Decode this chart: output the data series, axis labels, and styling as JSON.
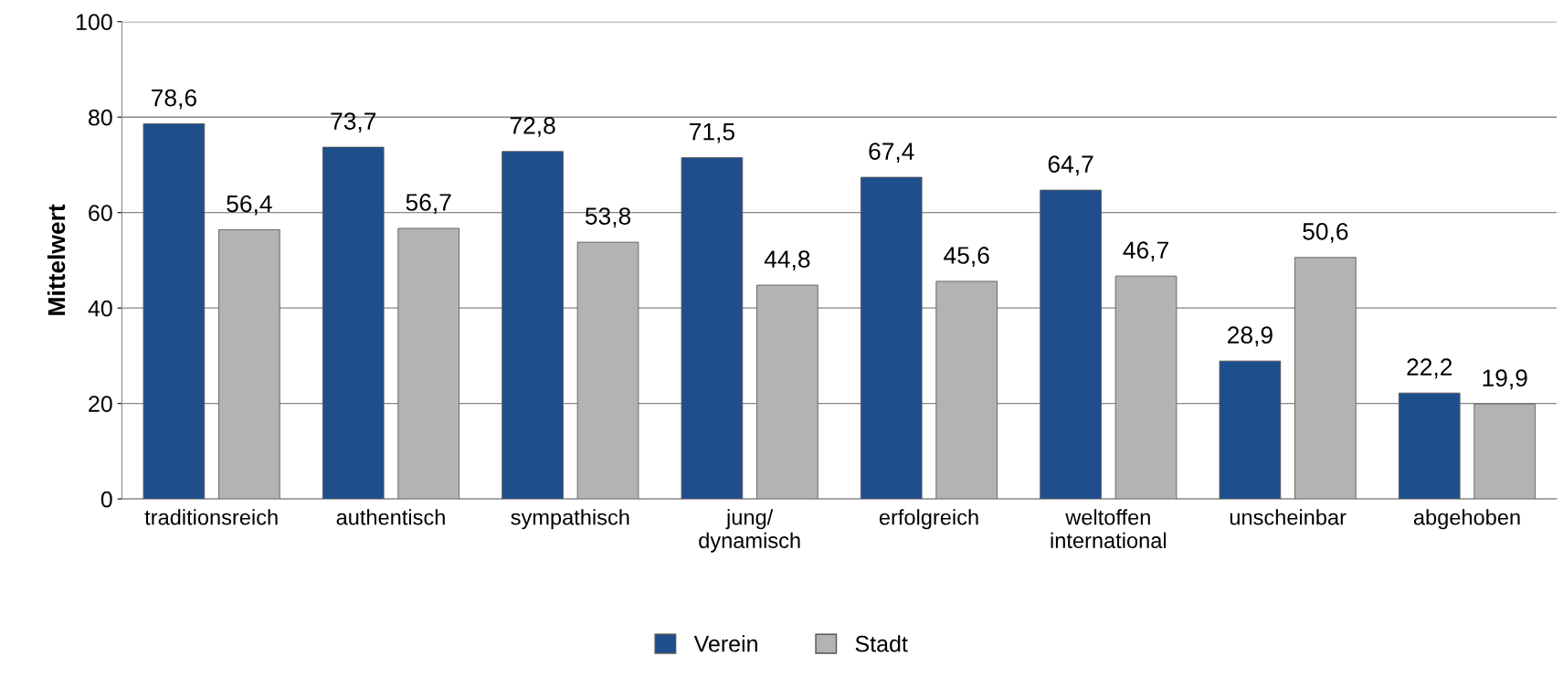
{
  "chart_data": {
    "type": "bar",
    "ylabel": "Mittelwert",
    "categories": [
      "traditionsreich",
      "authentisch",
      "sympathisch",
      "jung/\ndynamisch",
      "erfolgreich",
      "weltoffen\ninternational",
      "unscheinbar",
      "abgehoben"
    ],
    "series": [
      {
        "name": "Verein",
        "color": "#1f4e8c",
        "values": [
          78.6,
          73.7,
          72.8,
          71.5,
          67.4,
          64.7,
          28.9,
          22.2
        ],
        "value_labels": [
          "78,6",
          "73,7",
          "72,8",
          "71,5",
          "67,4",
          "64,7",
          "28,9",
          "22,2"
        ]
      },
      {
        "name": "Stadt",
        "color": "#b3b3b3",
        "values": [
          56.4,
          56.7,
          53.8,
          44.8,
          45.6,
          46.7,
          50.6,
          19.9
        ],
        "value_labels": [
          "56,4",
          "56,7",
          "53,8",
          "44,8",
          "45,6",
          "46,7",
          "50,6",
          "19,9"
        ]
      }
    ],
    "ylim": [
      0,
      100
    ],
    "yticks": [
      0,
      20,
      40,
      60,
      80,
      100
    ],
    "grid": "y",
    "legend": "bottom"
  }
}
